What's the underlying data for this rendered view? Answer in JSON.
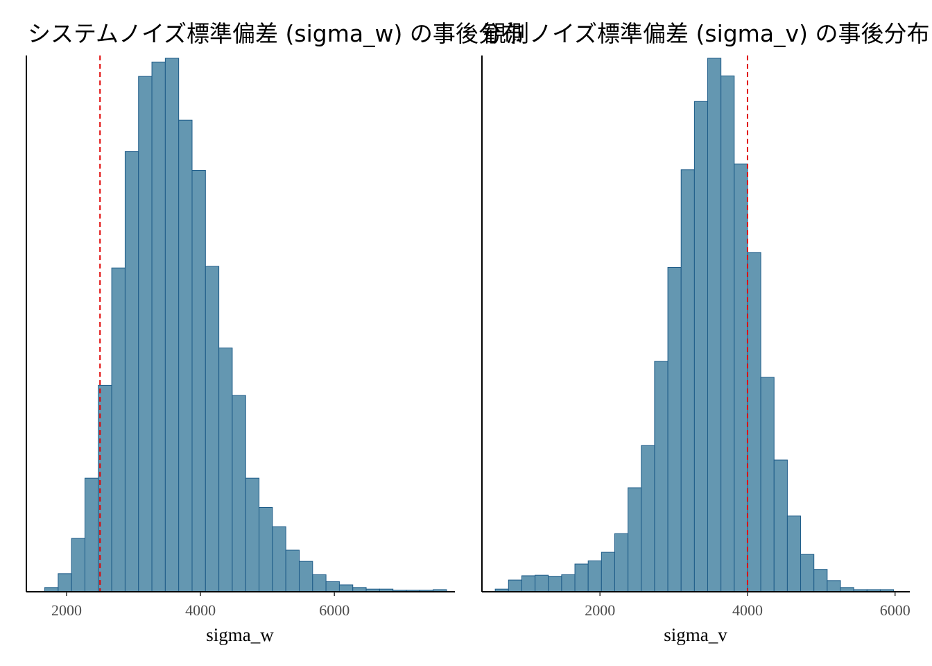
{
  "chart_data": [
    {
      "type": "bar",
      "subtype": "histogram",
      "title": "システムノイズ標準偏差 (sigma_w) の事後分布",
      "xlabel": "sigma_w",
      "ylabel": "",
      "xlim": [
        1400,
        7800
      ],
      "ylim": [
        0,
        1
      ],
      "xticks": [
        2000,
        4000,
        6000
      ],
      "y_ticks_shown": false,
      "grid": false,
      "legend": "none",
      "bar_fill": "#6497b1",
      "bar_edge": "#1c5a87",
      "reference_line": {
        "x": 2500,
        "style": "dashed",
        "color": "#e00000"
      },
      "bins": {
        "start": 1675,
        "width": 200,
        "heights": [
          0.008,
          0.034,
          0.1,
          0.213,
          0.387,
          0.607,
          0.825,
          0.966,
          0.993,
          1.0,
          0.884,
          0.79,
          0.61,
          0.457,
          0.368,
          0.213,
          0.158,
          0.122,
          0.078,
          0.057,
          0.032,
          0.019,
          0.013,
          0.008,
          0.005,
          0.005,
          0.003,
          0.003,
          0.003,
          0.004
        ]
      }
    },
    {
      "type": "bar",
      "subtype": "histogram",
      "title": "観測ノイズ標準偏差 (sigma_v) の事後分布",
      "xlabel": "sigma_v",
      "ylabel": "",
      "xlim": [
        400,
        6200
      ],
      "ylim": [
        0,
        1
      ],
      "xticks": [
        2000,
        4000,
        6000
      ],
      "y_ticks_shown": false,
      "grid": false,
      "legend": "none",
      "bar_fill": "#6497b1",
      "bar_edge": "#1c5a87",
      "reference_line": {
        "x": 4000,
        "style": "dashed",
        "color": "#e00000"
      },
      "bins": {
        "start": 580,
        "width": 180,
        "heights": [
          0.005,
          0.022,
          0.03,
          0.031,
          0.029,
          0.032,
          0.052,
          0.058,
          0.074,
          0.109,
          0.195,
          0.274,
          0.432,
          0.608,
          0.791,
          0.919,
          1.0,
          0.967,
          0.802,
          0.636,
          0.402,
          0.247,
          0.142,
          0.07,
          0.042,
          0.021,
          0.008,
          0.004,
          0.004,
          0.004
        ]
      }
    }
  ]
}
